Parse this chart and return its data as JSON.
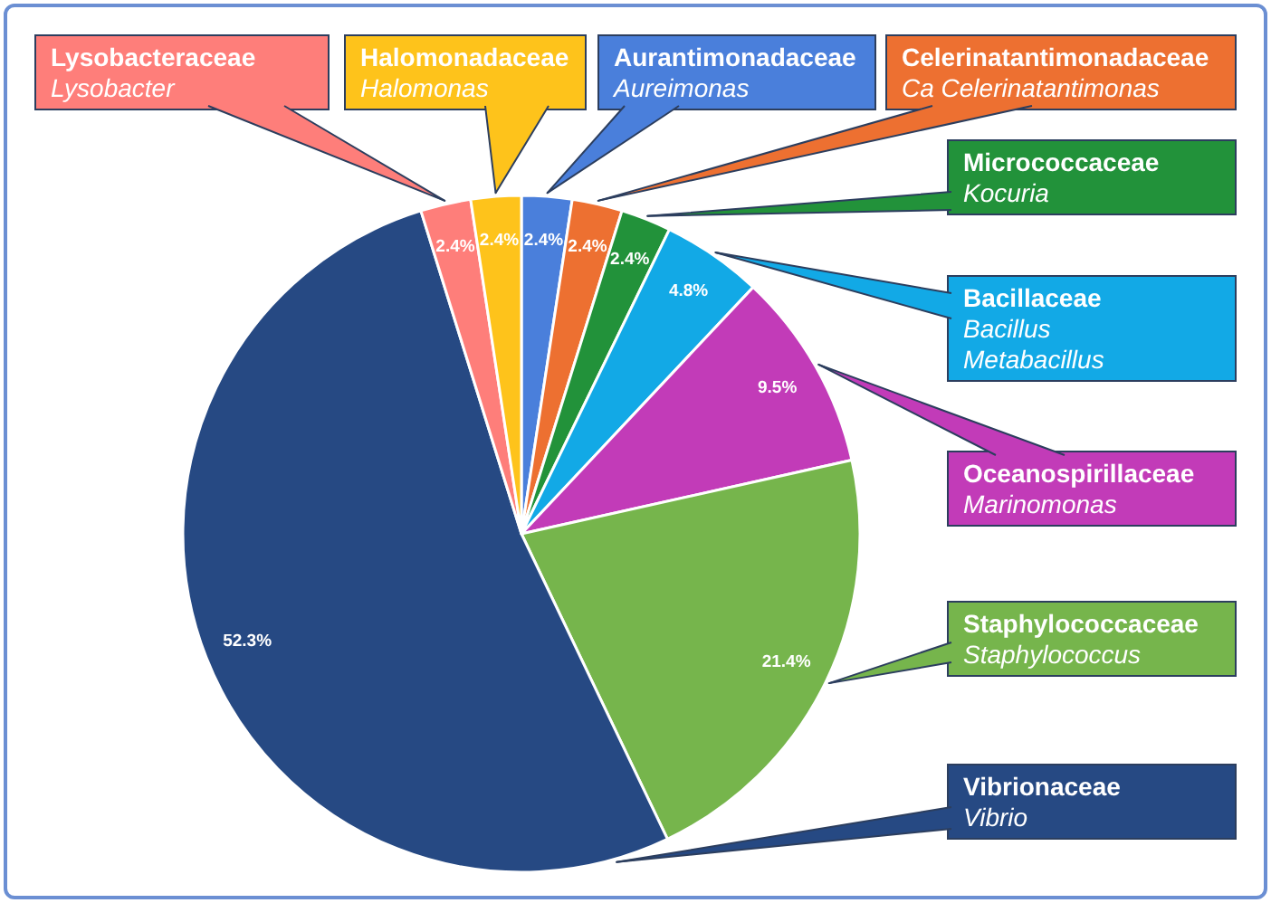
{
  "chart_data": {
    "type": "pie",
    "categories": [
      "Aurantimonadaceae\nAureimonas",
      "Celerinatantimonadaceae\nCa Celerinatantimonas",
      "Micrococcaceae\nKocuria",
      "Bacillaceae\nBacillus\nMetabacillus",
      "Oceanospirillaceae\nMarinomonas",
      "Staphylococcaceae\nStaphylococcus",
      "Vibrionaceae\nVibrio",
      "Lysobacteraceae\nLysobacter",
      "Halomonadaceae\nHalomonas"
    ],
    "values": [
      2.4,
      2.4,
      2.4,
      4.8,
      9.5,
      21.4,
      52.3,
      2.4,
      2.4
    ],
    "colors": [
      "#4a7fdb",
      "#ed7031",
      "#22923a",
      "#12a9e6",
      "#c23bb8",
      "#76b54c",
      "#264983",
      "#fe7e7a",
      "#fec31b"
    ],
    "value_labels": [
      "2.4%",
      "2.4%",
      "2.4%",
      "4.8%",
      "9.5%",
      "21.4%",
      "52.3%",
      "2.4%",
      "2.4%"
    ]
  }
}
